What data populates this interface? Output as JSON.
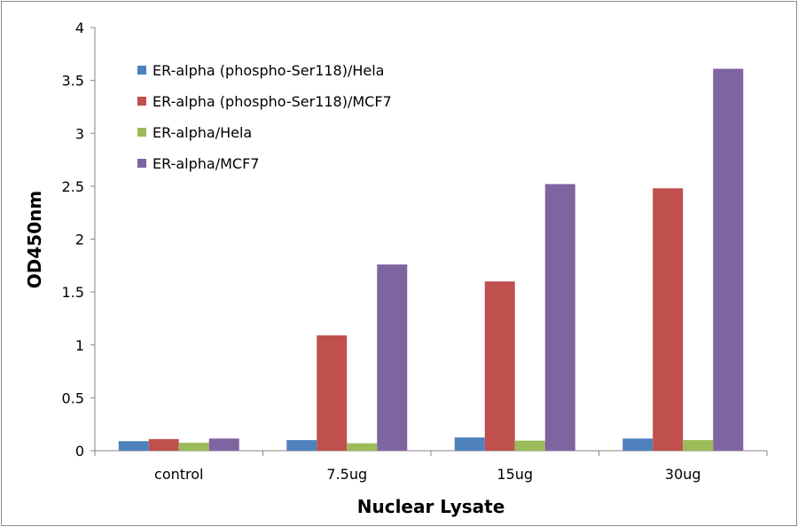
{
  "chart_data": {
    "type": "bar",
    "title": "",
    "xlabel": "Nuclear Lysate",
    "ylabel": "OD450nm",
    "ylim": [
      0,
      4
    ],
    "yticks": [
      "0",
      "0.5",
      "1",
      "1.5",
      "2",
      "2.5",
      "3",
      "3.5",
      "4"
    ],
    "grid": false,
    "legend_position": "top-left",
    "categories": [
      "control",
      "7.5ug",
      "15ug",
      "30ug"
    ],
    "series": [
      {
        "name": "ER-alpha (phospho-Ser118)/Hela",
        "color": "#4f81bd",
        "values": [
          0.09,
          0.1,
          0.125,
          0.115
        ]
      },
      {
        "name": "ER-alpha (phospho-Ser118)/MCF7",
        "color": "#c0504d",
        "values": [
          0.11,
          1.09,
          1.6,
          2.48
        ]
      },
      {
        "name": "ER-alpha/Hela",
        "color": "#9bbb59",
        "values": [
          0.075,
          0.07,
          0.095,
          0.1
        ]
      },
      {
        "name": "ER-alpha/MCF7",
        "color": "#8064a2",
        "values": [
          0.115,
          1.76,
          2.52,
          3.61
        ]
      }
    ]
  }
}
